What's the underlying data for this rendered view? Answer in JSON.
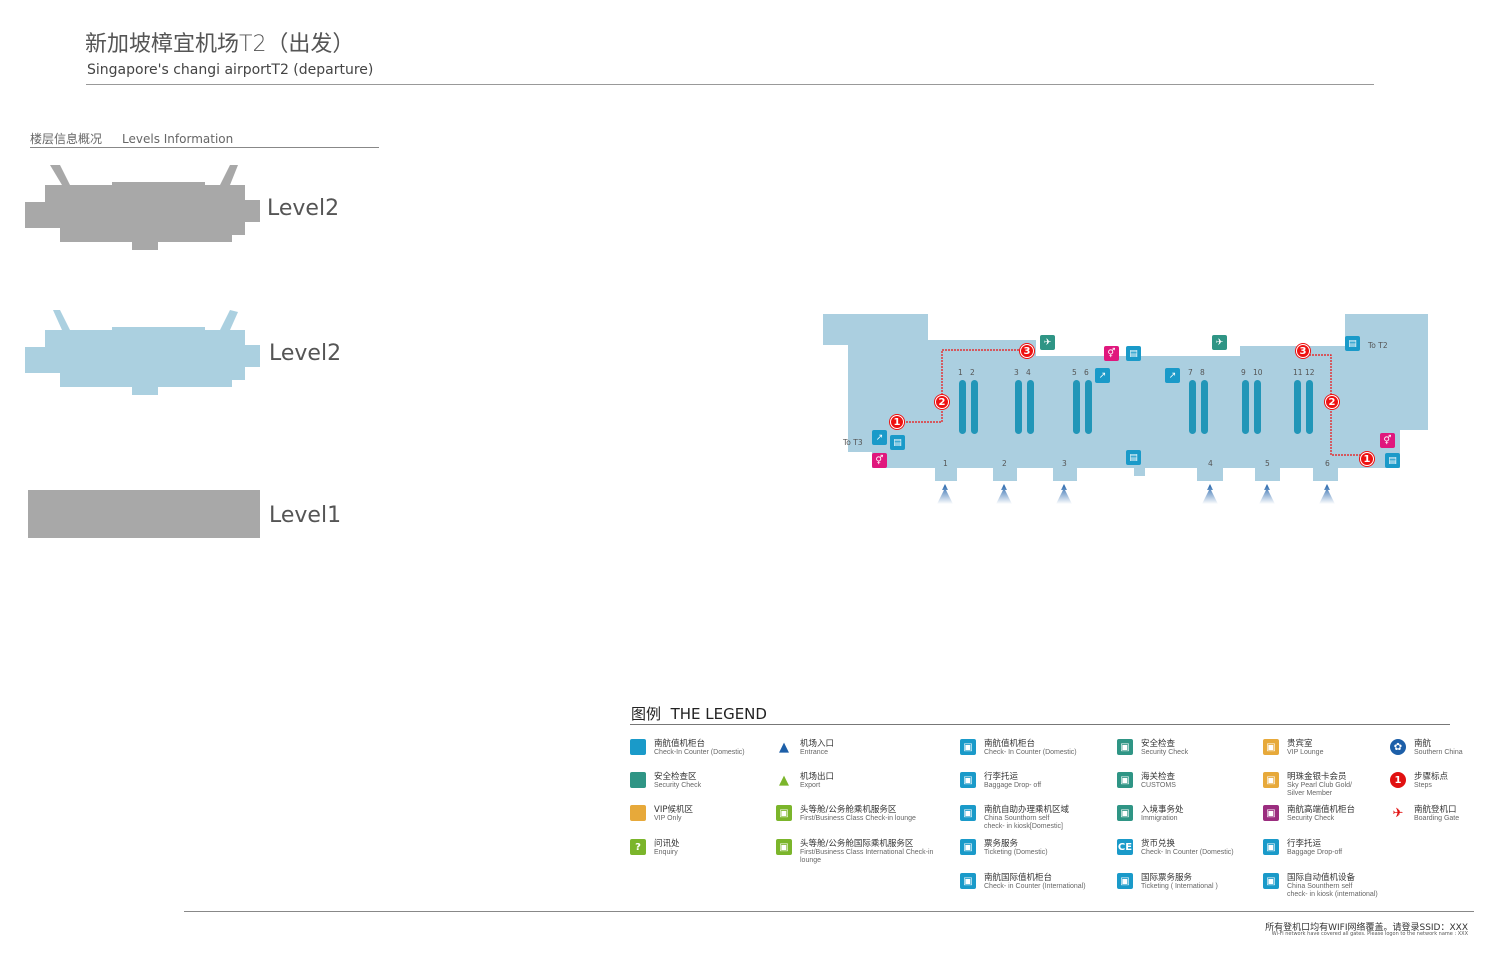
{
  "header": {
    "title_cn": "新加坡樟宜机场T2（出发）",
    "title_en": "Singapore's changi airportT2 (departure)"
  },
  "levels": {
    "heading_cn": "楼层信息概况",
    "heading_en": "Levels Information",
    "items": [
      {
        "label": "Level2",
        "color": "#a8a8a8"
      },
      {
        "label": "Level2",
        "color": "#abd0e0",
        "selected": true
      },
      {
        "label": "Level1",
        "color": "#a8a8a8"
      }
    ]
  },
  "map": {
    "floor_color": "#abcfe0",
    "counter_color": "#2196b8",
    "counter_numbers": [
      "1",
      "2",
      "3",
      "4",
      "5",
      "6",
      "7",
      "8",
      "9",
      "10",
      "11",
      "12"
    ],
    "gate_numbers": [
      "1",
      "2",
      "3",
      "4",
      "5",
      "6"
    ],
    "to_t2": "To T2",
    "to_t3": "To T3",
    "steps": [
      "1",
      "2",
      "3",
      "1",
      "2",
      "3"
    ]
  },
  "legend": {
    "title_cn": "图例",
    "title_en": "THE LEGEND",
    "items": [
      {
        "cn": "南航值机柜台",
        "en": "Check-In Counter (Domestic)",
        "icon": "blue-square",
        "color": "#1a9ac9"
      },
      {
        "cn": "安全检查区",
        "en": "Security Check",
        "icon": "teal-square",
        "color": "#2f9585"
      },
      {
        "cn": "VIP候机区",
        "en": "VIP Only",
        "icon": "orange-square",
        "color": "#e7a93a"
      },
      {
        "cn": "问讯处",
        "en": "Enquiry",
        "icon": "question-icon",
        "color": "#7bb52b"
      },
      {
        "cn": "机场入口",
        "en": "Entrance",
        "icon": "entrance-arrow-icon",
        "color": "#1d5fa8"
      },
      {
        "cn": "机场出口",
        "en": "Export",
        "icon": "exit-arrow-icon",
        "color": "#7bb52b"
      },
      {
        "cn": "头等舱/公务舱乘机服务区",
        "en": "First/Business Class Check-in lounge",
        "icon": "first-class-lounge-icon",
        "color": "#7bb52b"
      },
      {
        "cn": "头等舱/公务舱国际乘机服务区",
        "en": "First/Business Class International Check-in lounge",
        "icon": "first-class-intl-lounge-icon",
        "color": "#7bb52b"
      },
      {
        "cn": "南航值机柜台",
        "en": "Check- In Counter (Domestic)",
        "icon": "check-in-counter-icon",
        "color": "#1a9ac9"
      },
      {
        "cn": "行李托运",
        "en": "Baggage Drop- off",
        "icon": "baggage-icon",
        "color": "#1a9ac9"
      },
      {
        "cn": "南航自助办理乘机区域",
        "en": "China Sounthorn self",
        "en2": "check- in kiosk[Domestic]",
        "icon": "kiosk-icon",
        "color": "#1a9ac9"
      },
      {
        "cn": "票务服务",
        "en": "Ticketing (Domestic)",
        "icon": "ticketing-icon",
        "color": "#1a9ac9"
      },
      {
        "cn": "南航国际值机柜台",
        "en": "Check- in Counter (International)",
        "icon": "intl-check-in-icon",
        "color": "#1a9ac9"
      },
      {
        "cn": "安全检查",
        "en": "Security Check",
        "icon": "security-gate-icon",
        "color": "#2f9585"
      },
      {
        "cn": "海关检查",
        "en": "CUSTOMS",
        "icon": "customs-icon",
        "color": "#2f9585"
      },
      {
        "cn": "入境事务处",
        "en": "Immigration",
        "icon": "immigration-icon",
        "color": "#2f9585"
      },
      {
        "cn": "货币兑换",
        "en": "Check- In Counter (Domestic)",
        "icon": "currency-exchange-icon",
        "glyph": "CE",
        "color": "#1a9ac9"
      },
      {
        "cn": "国际票务服务",
        "en": "Ticketing ( International )",
        "icon": "intl-ticketing-icon",
        "color": "#1a9ac9"
      },
      {
        "cn": "贵宾室",
        "en": "VIP Lounge",
        "icon": "vip-lounge-icon",
        "color": "#e7a93a"
      },
      {
        "cn": "明珠金银卡会员",
        "en": "Sky Pearl Club Gold/",
        "en2": "Silver Member",
        "icon": "pearl-member-icon",
        "color": "#e7a93a"
      },
      {
        "cn": "南航高端值机柜台",
        "en": "Security Check",
        "icon": "premium-check-in-icon",
        "color": "#9b2d7f"
      },
      {
        "cn": "行李托运",
        "en": "Baggage Drop-off",
        "icon": "baggage-icon",
        "color": "#1a9ac9"
      },
      {
        "cn": "国际自动值机设备",
        "en": "China Sounthern self",
        "en2": "check- in kiosk (international)",
        "icon": "intl-kiosk-icon",
        "color": "#1a9ac9"
      },
      {
        "cn": "南航",
        "en": "Southern China",
        "icon": "china-southern-logo-icon",
        "color": "#1d5fa8"
      },
      {
        "cn": "步骤标点",
        "en": "Steps",
        "icon": "step-marker-icon",
        "color": "#e11111"
      },
      {
        "cn": "南航登机口",
        "en": "Boarding Gate",
        "icon": "airplane-icon",
        "color": "#e11111"
      }
    ]
  },
  "footer": {
    "cn": "所有登机口均有WIFI网络覆盖。请登录SSID：XXX",
    "en": "Wi-Fi network have covered all gates. Please logon to the network name : XXX"
  }
}
